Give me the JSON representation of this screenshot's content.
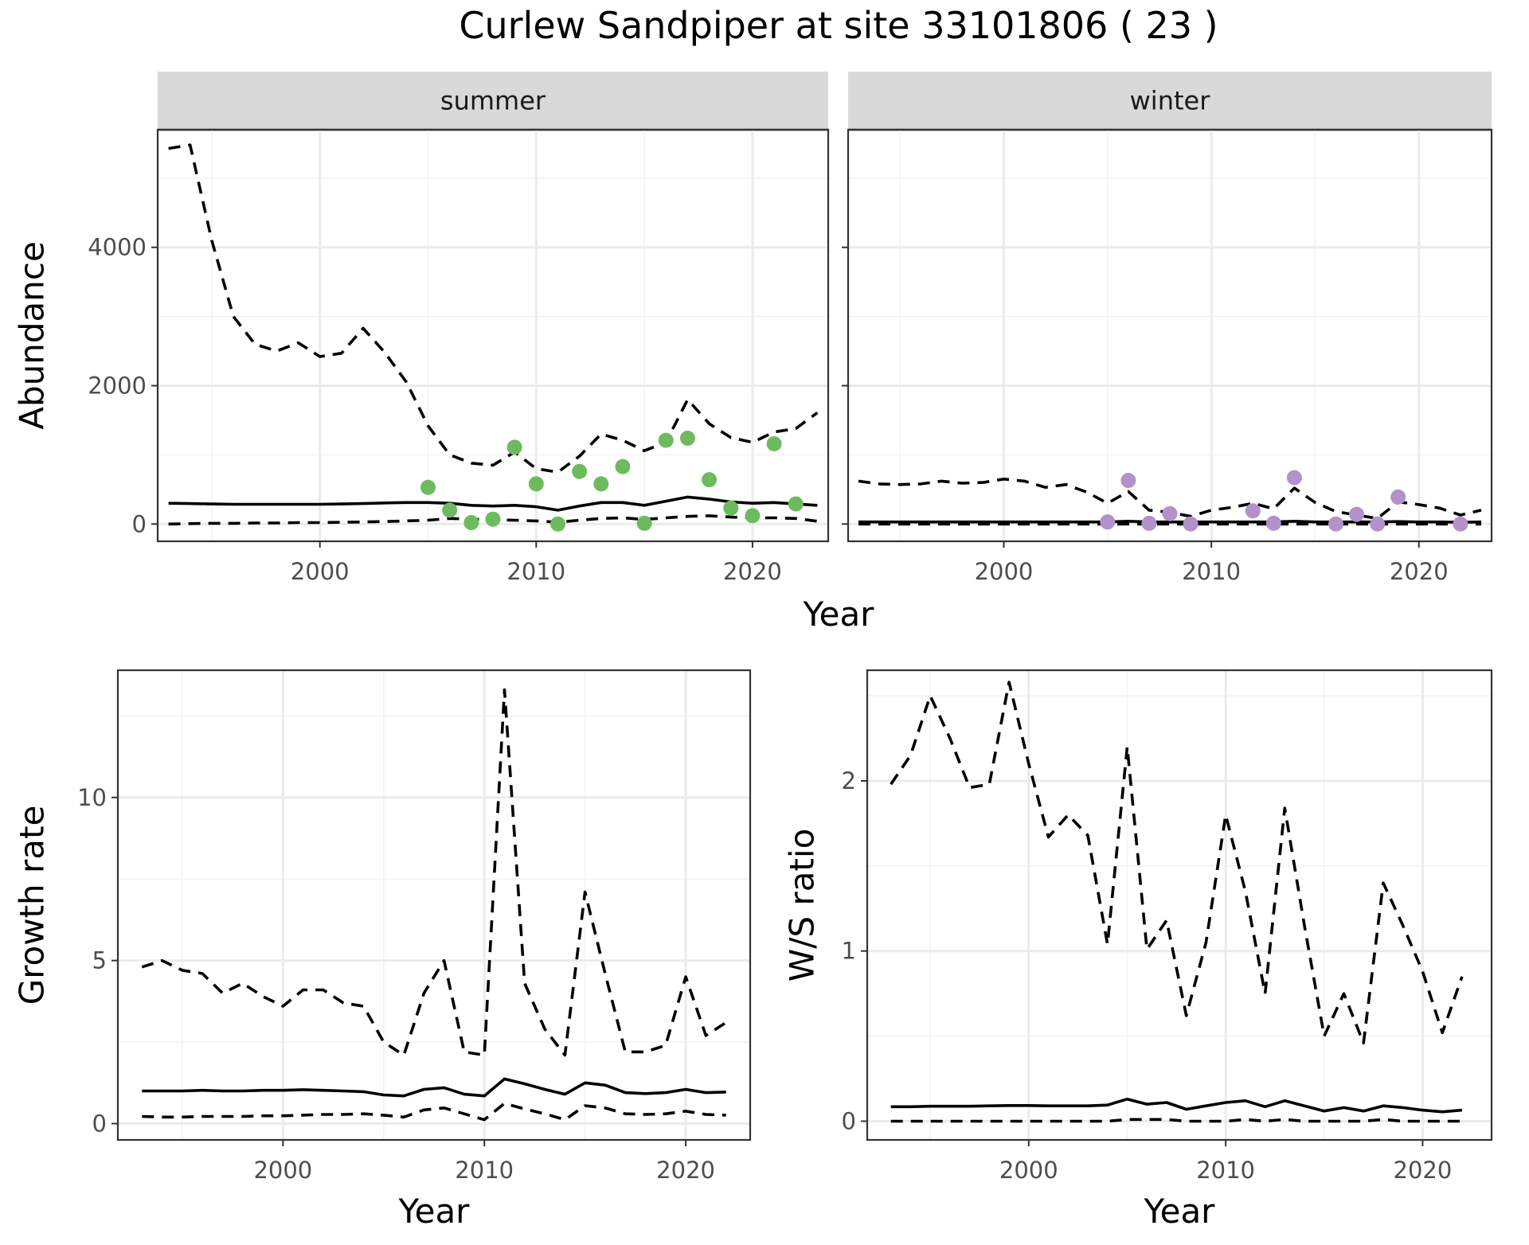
{
  "title": "Curlew Sandpiper at site 33101806 ( 23 )",
  "colors": {
    "summer_points": "#6dbb5e",
    "winter_points": "#b391c9",
    "lines": "#000000"
  },
  "chart_data": [
    {
      "type": "line",
      "facet": "summer",
      "strip_label": "summer",
      "xlabel": "",
      "ylabel": "Abundance",
      "xlim": [
        1992.5,
        2023.5
      ],
      "ylim": [
        -250,
        5700
      ],
      "x_ticks": [
        2000,
        2010,
        2020
      ],
      "x_tick_labels": [
        "2000",
        "2010",
        "2020"
      ],
      "y_ticks": [
        0,
        2000,
        4000
      ],
      "y_tick_labels": [
        "0",
        "2000",
        "4000"
      ],
      "grid": true,
      "years": [
        1993,
        1994,
        1995,
        1996,
        1997,
        1998,
        1999,
        2000,
        2001,
        2002,
        2003,
        2004,
        2005,
        2006,
        2007,
        2008,
        2009,
        2010,
        2011,
        2012,
        2013,
        2014,
        2015,
        2016,
        2017,
        2018,
        2019,
        2020,
        2021,
        2022,
        2023
      ],
      "series": [
        {
          "style": "dashed",
          "values": [
            5430,
            5480,
            4100,
            3000,
            2600,
            2500,
            2620,
            2420,
            2470,
            2830,
            2480,
            2050,
            1420,
            1000,
            880,
            850,
            1040,
            800,
            750,
            980,
            1300,
            1210,
            1060,
            1180,
            1800,
            1450,
            1250,
            1180,
            1330,
            1380,
            1610
          ]
        },
        {
          "style": "solid",
          "values": [
            300,
            295,
            290,
            285,
            285,
            285,
            285,
            285,
            290,
            295,
            305,
            310,
            310,
            300,
            270,
            260,
            270,
            250,
            200,
            260,
            310,
            310,
            270,
            330,
            390,
            360,
            320,
            300,
            310,
            290,
            270
          ]
        },
        {
          "style": "dashed",
          "values": [
            0,
            5,
            10,
            10,
            15,
            15,
            20,
            20,
            25,
            30,
            35,
            45,
            55,
            80,
            70,
            60,
            55,
            45,
            25,
            55,
            80,
            90,
            65,
            90,
            110,
            120,
            100,
            90,
            90,
            80,
            40
          ]
        }
      ],
      "points": {
        "x": [
          2005,
          2006,
          2007,
          2008,
          2009,
          2010,
          2011,
          2012,
          2013,
          2014,
          2015,
          2016,
          2017,
          2018,
          2019,
          2020,
          2021,
          2022
        ],
        "y": [
          530,
          200,
          20,
          70,
          1110,
          580,
          0,
          760,
          580,
          830,
          10,
          1210,
          1240,
          640,
          230,
          120,
          1160,
          290
        ]
      }
    },
    {
      "type": "line",
      "facet": "winter",
      "strip_label": "winter",
      "xlabel": "",
      "ylabel": "",
      "xlim": [
        1992.5,
        2023.5
      ],
      "ylim": [
        -250,
        5700
      ],
      "x_ticks": [
        2000,
        2010,
        2020
      ],
      "x_tick_labels": [
        "2000",
        "2010",
        "2020"
      ],
      "grid": true,
      "years": [
        1993,
        1994,
        1995,
        1996,
        1997,
        1998,
        1999,
        2000,
        2001,
        2002,
        2003,
        2004,
        2005,
        2006,
        2007,
        2008,
        2009,
        2010,
        2011,
        2012,
        2013,
        2014,
        2015,
        2016,
        2017,
        2018,
        2019,
        2020,
        2021,
        2022,
        2023
      ],
      "series": [
        {
          "style": "dashed",
          "values": [
            620,
            580,
            570,
            580,
            620,
            590,
            600,
            650,
            620,
            530,
            570,
            460,
            300,
            470,
            200,
            170,
            110,
            200,
            240,
            300,
            220,
            520,
            310,
            180,
            130,
            80,
            320,
            280,
            230,
            130,
            200
          ]
        },
        {
          "style": "solid",
          "values": [
            30,
            30,
            30,
            30,
            30,
            30,
            30,
            30,
            30,
            30,
            30,
            30,
            30,
            40,
            30,
            30,
            30,
            30,
            30,
            30,
            30,
            40,
            30,
            30,
            30,
            30,
            35,
            30,
            30,
            25,
            30
          ]
        },
        {
          "style": "dashed",
          "values": [
            0,
            0,
            0,
            0,
            0,
            0,
            0,
            0,
            0,
            0,
            0,
            0,
            0,
            0,
            0,
            0,
            0,
            0,
            0,
            0,
            0,
            0,
            0,
            0,
            0,
            0,
            0,
            0,
            0,
            0,
            0
          ]
        }
      ],
      "points": {
        "x": [
          2005,
          2006,
          2007,
          2008,
          2009,
          2012,
          2013,
          2014,
          2016,
          2017,
          2018,
          2019,
          2022
        ],
        "y": [
          30,
          630,
          10,
          150,
          0,
          190,
          10,
          670,
          0,
          140,
          0,
          390,
          0
        ]
      }
    },
    {
      "type": "line",
      "facet": "growth",
      "xlabel": "Year",
      "ylabel": "Growth rate",
      "xlim": [
        1991.8,
        2023.2
      ],
      "ylim": [
        -0.5,
        13.9
      ],
      "x_ticks": [
        2000,
        2010,
        2020
      ],
      "x_tick_labels": [
        "2000",
        "2010",
        "2020"
      ],
      "y_ticks": [
        0,
        5,
        10
      ],
      "y_tick_labels": [
        "0",
        "5",
        "10"
      ],
      "grid": true,
      "years": [
        1993,
        1994,
        1995,
        1996,
        1997,
        1998,
        1999,
        2000,
        2001,
        2002,
        2003,
        2004,
        2005,
        2006,
        2007,
        2008,
        2009,
        2010,
        2011,
        2012,
        2013,
        2014,
        2015,
        2016,
        2017,
        2018,
        2019,
        2020,
        2021,
        2022
      ],
      "series": [
        {
          "style": "dashed",
          "values": [
            4.8,
            5.0,
            4.7,
            4.6,
            4.0,
            4.3,
            3.9,
            3.6,
            4.1,
            4.1,
            3.7,
            3.6,
            2.5,
            2.1,
            4.0,
            5.0,
            2.2,
            2.1,
            13.3,
            4.3,
            2.9,
            2.1,
            7.1,
            4.6,
            2.2,
            2.2,
            2.4,
            4.5,
            2.7,
            3.1
          ]
        },
        {
          "style": "solid",
          "values": [
            1.0,
            1.0,
            1.0,
            1.02,
            1.0,
            1.0,
            1.02,
            1.02,
            1.04,
            1.02,
            1.0,
            0.98,
            0.88,
            0.85,
            1.05,
            1.1,
            0.9,
            0.85,
            1.37,
            1.22,
            1.05,
            0.9,
            1.25,
            1.18,
            0.95,
            0.92,
            0.95,
            1.05,
            0.95,
            0.97
          ]
        },
        {
          "style": "dashed",
          "values": [
            0.22,
            0.2,
            0.2,
            0.22,
            0.22,
            0.22,
            0.24,
            0.24,
            0.26,
            0.28,
            0.28,
            0.3,
            0.26,
            0.2,
            0.42,
            0.48,
            0.3,
            0.12,
            0.62,
            0.45,
            0.3,
            0.12,
            0.55,
            0.48,
            0.3,
            0.28,
            0.3,
            0.38,
            0.28,
            0.26
          ]
        }
      ]
    },
    {
      "type": "line",
      "facet": "ws_ratio",
      "xlabel": "Year",
      "ylabel": "W/S ratio",
      "xlim": [
        1991.8,
        2023.5
      ],
      "ylim": [
        -0.11,
        2.65
      ],
      "x_ticks": [
        2000,
        2010,
        2020
      ],
      "x_tick_labels": [
        "2000",
        "2010",
        "2020"
      ],
      "y_ticks": [
        0,
        1,
        2
      ],
      "y_tick_labels": [
        "0",
        "1",
        "2"
      ],
      "grid": true,
      "years": [
        1993,
        1994,
        1995,
        1996,
        1997,
        1998,
        1999,
        2000,
        2001,
        2002,
        2003,
        2004,
        2005,
        2006,
        2007,
        2008,
        2009,
        2010,
        2011,
        2012,
        2013,
        2014,
        2015,
        2016,
        2017,
        2018,
        2019,
        2020,
        2021,
        2022
      ],
      "series": [
        {
          "style": "dashed",
          "values": [
            1.98,
            2.15,
            2.5,
            2.25,
            1.96,
            1.98,
            2.58,
            2.1,
            1.67,
            1.8,
            1.68,
            1.04,
            2.2,
            1.01,
            1.18,
            0.62,
            1.05,
            1.8,
            1.35,
            0.75,
            1.84,
            1.15,
            0.5,
            0.75,
            0.46,
            1.4,
            1.15,
            0.88,
            0.52,
            0.85
          ]
        },
        {
          "style": "solid",
          "values": [
            0.085,
            0.085,
            0.088,
            0.088,
            0.088,
            0.09,
            0.092,
            0.092,
            0.09,
            0.09,
            0.09,
            0.095,
            0.13,
            0.1,
            0.11,
            0.07,
            0.09,
            0.11,
            0.12,
            0.085,
            0.12,
            0.09,
            0.06,
            0.08,
            0.06,
            0.09,
            0.08,
            0.065,
            0.055,
            0.065
          ]
        },
        {
          "style": "dashed",
          "values": [
            0.0,
            0.0,
            0.0,
            0.0,
            0.0,
            0.0,
            0.0,
            0.0,
            0.0,
            0.0,
            0.0,
            0.0,
            0.01,
            0.01,
            0.01,
            0.0,
            0.0,
            0.0,
            0.01,
            0.0,
            0.01,
            0.0,
            0.0,
            0.0,
            0.0,
            0.01,
            0.0,
            0.0,
            0.0,
            0.0
          ]
        }
      ]
    }
  ]
}
